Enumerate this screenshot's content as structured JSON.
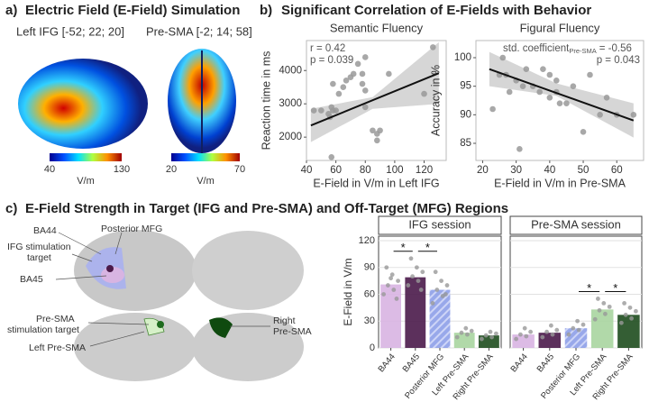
{
  "panel_a": {
    "label": "a)",
    "title": "Electric Field (E-Field) Simulation",
    "left": "Left IFG [-52; 22; 20]",
    "right": "Pre-SMA [-2; 14; 58]",
    "colorbar_left": {
      "min": 40,
      "max": 130,
      "unit": "V/m"
    },
    "colorbar_right": {
      "min": 20,
      "max": 70,
      "unit": "V/m"
    }
  },
  "panel_b": {
    "label": "b)",
    "title": "Significant Correlation of E-Fields with Behavior"
  },
  "panel_c": {
    "label": "c)",
    "title": "E-Field Strength in Target (IFG and Pre-SMA) and Off-Target (MFG) Regions",
    "brain_labels": {
      "ba44": "BA44",
      "post_mfg": "Posterior MFG",
      "ifg_target": [
        "IFG stimulation",
        "target"
      ],
      "ba45": "BA45",
      "presma_target": [
        "Pre-SMA",
        "stimulation target"
      ],
      "left_presma": "Left Pre-SMA",
      "right_presma": [
        "Right",
        "Pre-SMA"
      ]
    }
  },
  "chart_data": [
    {
      "type": "scatter",
      "title": "Semantic Fluency",
      "xlabel": "E-Field in V/m in Left IFG",
      "ylabel": "Reaction time in ms",
      "annotations": [
        "r = 0.42",
        "p = 0.039"
      ],
      "x": [
        45,
        50,
        55,
        57,
        58,
        56,
        60,
        57,
        58,
        62,
        65,
        67,
        70,
        72,
        75,
        78,
        80,
        78,
        80,
        85,
        88,
        90,
        88,
        96,
        120,
        126,
        80
      ],
      "values": [
        2800,
        2800,
        2700,
        2900,
        2800,
        2600,
        2800,
        1400,
        3600,
        3300,
        3500,
        3700,
        3800,
        3900,
        4200,
        3900,
        4400,
        3600,
        3400,
        2200,
        2100,
        2200,
        1900,
        3900,
        3300,
        4700,
        2900
      ],
      "fit": {
        "x": [
          43,
          130
        ],
        "values": [
          2350,
          3920
        ]
      },
      "band": {
        "x": [
          43,
          85,
          130
        ],
        "lower": [
          1850,
          2850,
          3000
        ],
        "upper": [
          2850,
          3200,
          4850
        ]
      },
      "color": "#999999",
      "xlim": [
        40,
        135
      ],
      "xticks": [
        40,
        60,
        80,
        100,
        120
      ],
      "ylim": [
        1300,
        4900
      ],
      "yticks": [
        2000,
        3000,
        4000
      ]
    },
    {
      "type": "scatter",
      "title": "Figural Fluency",
      "xlabel": "E-Field in V/m in Pre-SMA",
      "ylabel": "Accuracy in %",
      "annotation_parts": [
        "std. coefficient",
        "Pre-SMA",
        "= -0.56"
      ],
      "annotations": [
        "p = 0.043"
      ],
      "x": [
        23,
        25,
        27,
        28,
        30,
        32,
        33,
        35,
        37,
        38,
        40,
        40,
        42,
        42,
        43,
        45,
        47,
        50,
        52,
        55,
        57,
        60,
        65,
        31,
        26
      ],
      "values": [
        91,
        97,
        97,
        94,
        96,
        95,
        98,
        95,
        94,
        98,
        97,
        93,
        96,
        94,
        92,
        92,
        95,
        87,
        97,
        90,
        93,
        90,
        90,
        84,
        100
      ],
      "fit": {
        "x": [
          22,
          65
        ],
        "values": [
          98,
          89
        ]
      },
      "band": {
        "x": [
          22,
          42,
          65
        ],
        "lower": [
          95,
          93.3,
          86
        ],
        "upper": [
          101,
          95.5,
          92
        ]
      },
      "color": "#999999",
      "xlim": [
        18,
        68
      ],
      "xticks": [
        20,
        30,
        40,
        50,
        60
      ],
      "ylim": [
        82,
        103
      ],
      "yticks": [
        85,
        90,
        95,
        100
      ]
    },
    {
      "type": "bar",
      "title": "IFG session",
      "ylabel": "E-Field in V/m",
      "categories": [
        "BA44",
        "BA45",
        "Posterior MFG",
        "Left Pre-SMA",
        "Right Pre-SMA"
      ],
      "values": [
        71,
        79,
        65,
        17,
        14
      ],
      "colors": [
        "#d8b4e2",
        "#4a1a4a",
        "#8c9ee8",
        "#a8d5a0",
        "#1e4d1e"
      ],
      "hatched": "Posterior MFG",
      "points": [
        [
          60,
          65,
          70,
          75,
          82,
          90,
          55,
          78
        ],
        [
          70,
          75,
          80,
          85,
          90,
          100,
          65
        ],
        [
          50,
          58,
          65,
          70,
          75,
          85,
          60
        ],
        [
          12,
          15,
          17,
          19,
          22
        ],
        [
          10,
          12,
          14,
          16,
          18
        ]
      ],
      "significance": [
        {
          "between": [
            "BA44",
            "BA45"
          ],
          "label": "*"
        },
        {
          "between": [
            "BA45",
            "Posterior MFG"
          ],
          "label": "*"
        }
      ],
      "ylim": [
        0,
        125
      ],
      "yticks": [
        0,
        30,
        60,
        90,
        120
      ],
      "grid": true
    },
    {
      "type": "bar",
      "title": "Pre-SMA session",
      "categories": [
        "BA44",
        "BA45",
        "Posterior MFG",
        "Left Pre-SMA",
        "Right Pre-SMA"
      ],
      "values": [
        15,
        17,
        22,
        43,
        37
      ],
      "colors": [
        "#d8b4e2",
        "#4a1a4a",
        "#8c9ee8",
        "#a8d5a0",
        "#1e4d1e"
      ],
      "hatched": "Posterior MFG",
      "points": [
        [
          10,
          13,
          15,
          18,
          22
        ],
        [
          12,
          15,
          18,
          20,
          25
        ],
        [
          15,
          20,
          22,
          26,
          30
        ],
        [
          32,
          38,
          42,
          46,
          50,
          55
        ],
        [
          28,
          33,
          37,
          41,
          45,
          50
        ]
      ],
      "significance": [
        {
          "between": [
            "Posterior MFG",
            "Left Pre-SMA"
          ],
          "label": "*"
        },
        {
          "between": [
            "Left Pre-SMA",
            "Right Pre-SMA"
          ],
          "label": "*"
        }
      ],
      "ylim": [
        0,
        125
      ],
      "yticks": [
        0,
        30,
        60,
        90,
        120
      ],
      "grid": true
    }
  ]
}
